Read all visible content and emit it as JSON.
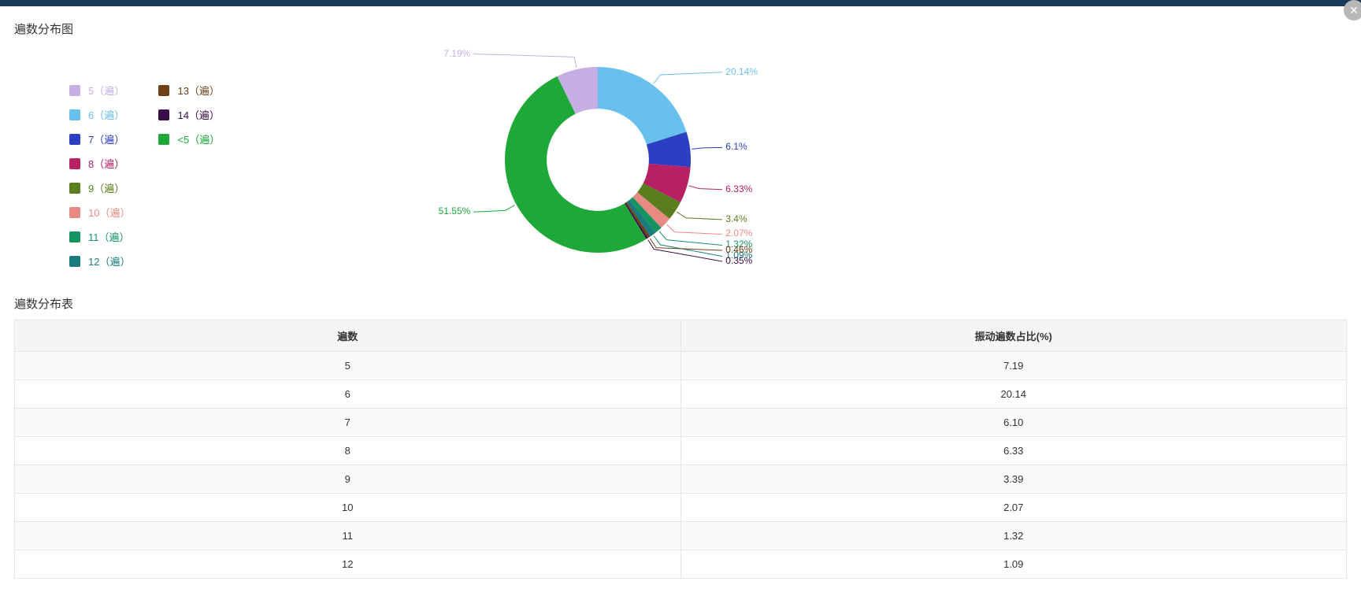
{
  "chart": {
    "title": "遍数分布图",
    "type": "doughnut",
    "inner_radius_ratio": 0.55,
    "slices": [
      {
        "key": "5",
        "legend_label": "5（遍）",
        "value": 7.19,
        "label": "7.19%",
        "color": "#c5aee3"
      },
      {
        "key": "6",
        "legend_label": "6（遍）",
        "value": 20.14,
        "label": "20.14%",
        "color": "#6ac0ed"
      },
      {
        "key": "7",
        "legend_label": "7（遍）",
        "value": 6.1,
        "label": "6.1%",
        "color": "#2a3fc2"
      },
      {
        "key": "8",
        "legend_label": "8（遍）",
        "value": 6.33,
        "label": "6.33%",
        "color": "#b82064"
      },
      {
        "key": "9",
        "legend_label": "9（遍）",
        "value": 3.39,
        "label": "3.4%",
        "color": "#5a7d1e"
      },
      {
        "key": "10",
        "legend_label": "10（遍）",
        "value": 2.07,
        "label": "2.07%",
        "color": "#e88a84"
      },
      {
        "key": "11",
        "legend_label": "11（遍）",
        "value": 1.32,
        "label": "1.32%",
        "color": "#159462"
      },
      {
        "key": "12",
        "legend_label": "12（遍）",
        "value": 1.09,
        "label": "1.09%",
        "color": "#1a7b7e"
      },
      {
        "key": "13",
        "legend_label": "13（遍）",
        "value": 0.46,
        "label": "0.46%",
        "color": "#6d4216"
      },
      {
        "key": "14",
        "legend_label": "14（遍）",
        "value": 0.35,
        "label": "0.35%",
        "color": "#3b0d4a"
      },
      {
        "key": "lt5",
        "legend_label": "<5（遍）",
        "value": 51.55,
        "label": "51.55%",
        "color": "#1da838"
      }
    ],
    "legend_column_split": 8,
    "label_leader_color": "#808080",
    "background_color": "#ffffff"
  },
  "table": {
    "title": "遍数分布表",
    "columns": [
      "遍数",
      "振动遍数占比(%)"
    ],
    "rows": [
      [
        "5",
        "7.19"
      ],
      [
        "6",
        "20.14"
      ],
      [
        "7",
        "6.10"
      ],
      [
        "8",
        "6.33"
      ],
      [
        "9",
        "3.39"
      ],
      [
        "10",
        "2.07"
      ],
      [
        "11",
        "1.32"
      ],
      [
        "12",
        "1.09"
      ]
    ],
    "row_alt_bg": [
      "#fafafa",
      "#ffffff"
    ],
    "header_bg": "#f5f5f5",
    "border_color": "#e6e6e6"
  },
  "close_icon": {
    "glyph": "✕"
  }
}
